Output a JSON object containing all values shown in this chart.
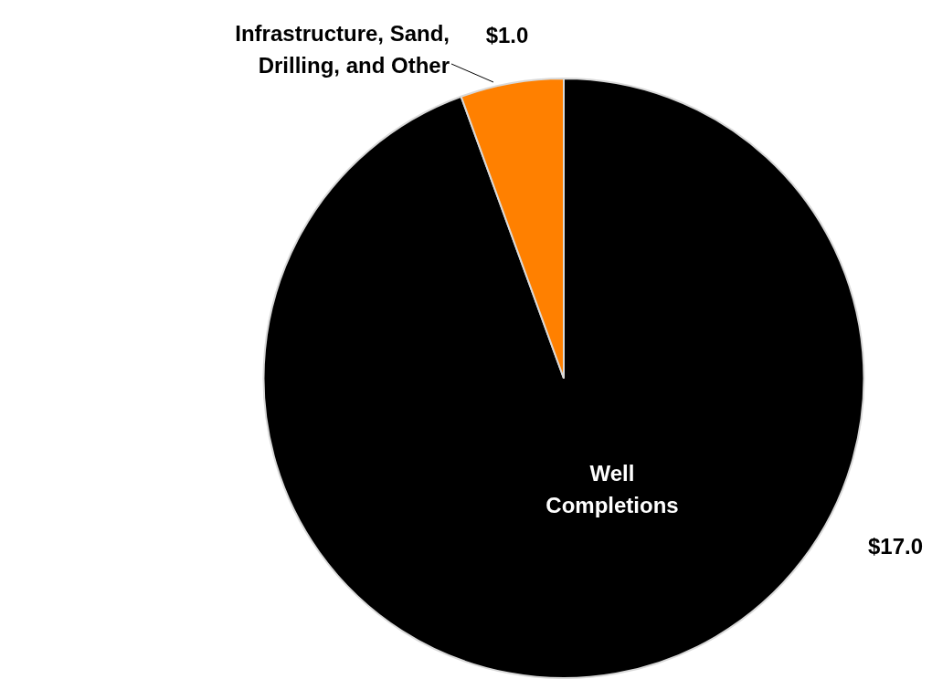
{
  "chart_data": {
    "type": "pie",
    "categories": [
      "Well\nCompletions",
      "Infrastructure, Sand,\nDrilling, and Other"
    ],
    "values": [
      17.0,
      1.0
    ],
    "colors": [
      "#000000",
      "#ff8000"
    ],
    "value_labels": [
      "$17.0",
      "$1.0"
    ],
    "legend": false
  }
}
